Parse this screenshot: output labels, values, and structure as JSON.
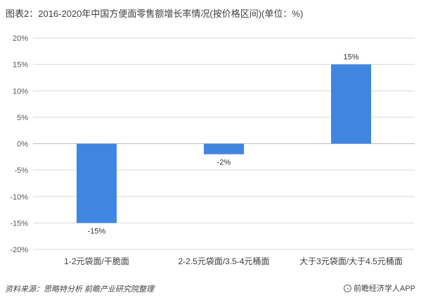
{
  "title": "图表2：2016-2020年中国方便面零售额增长率情况(按价格区间)(单位：%)",
  "chart_data": {
    "type": "bar",
    "categories": [
      "1-2元袋面/干脆面",
      "2-2.5元袋面/3.5-4元桶面",
      "大于3元袋面/大于4.5元桶面"
    ],
    "values": [
      -15,
      -2,
      15
    ],
    "data_labels": [
      "-15%",
      "-2%",
      "15%"
    ],
    "ylim": [
      -20,
      20
    ],
    "yticks": [
      20,
      15,
      10,
      5,
      0,
      -5,
      -10,
      -15,
      -20
    ],
    "ytick_labels": [
      "20%",
      "15%",
      "10%",
      "5%",
      "0%",
      "-5%",
      "-10%",
      "-15%",
      "-20%"
    ],
    "bar_color": "#3f86e0",
    "grid": true
  },
  "footer": {
    "source": "资料来源：思略特分析 前瞻产业研究院整理",
    "brand": "前瞻经济学人APP",
    "brand_icon": "brand-logo-icon"
  }
}
